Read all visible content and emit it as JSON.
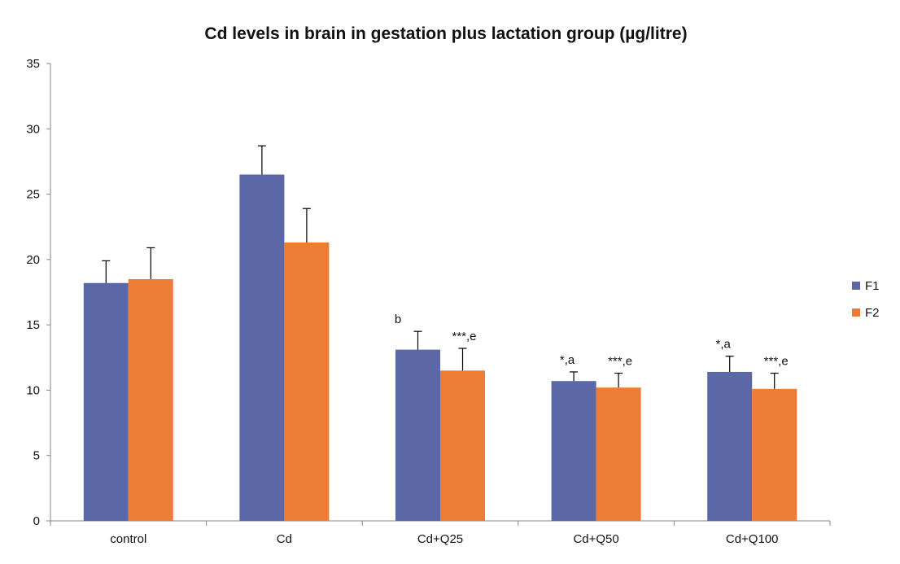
{
  "chart_data": {
    "type": "bar",
    "title": "Cd levels in brain in gestation plus lactation group (µg/litre)",
    "xlabel": "",
    "ylabel": "",
    "ylim": [
      0,
      35
    ],
    "yticks": [
      0,
      5,
      10,
      15,
      20,
      25,
      30,
      35
    ],
    "grid": false,
    "legend_position": "right",
    "categories": [
      "control",
      "Cd",
      "Cd+Q25",
      "Cd+Q50",
      "Cd+Q100"
    ],
    "series": [
      {
        "name": "F1",
        "color": "#5b67a6",
        "values": [
          18.2,
          26.5,
          13.1,
          10.7,
          11.4
        ],
        "errors": [
          1.7,
          2.2,
          1.4,
          0.7,
          1.2
        ],
        "annotations": [
          "",
          "",
          "b",
          "*,a",
          "*,a"
        ]
      },
      {
        "name": "F2",
        "color": "#ed7d36",
        "values": [
          18.5,
          21.3,
          11.5,
          10.2,
          10.1
        ],
        "errors": [
          2.4,
          2.6,
          1.7,
          1.1,
          1.2
        ],
        "annotations": [
          "",
          "",
          "***,e",
          "***,e",
          "***,e"
        ]
      }
    ]
  }
}
